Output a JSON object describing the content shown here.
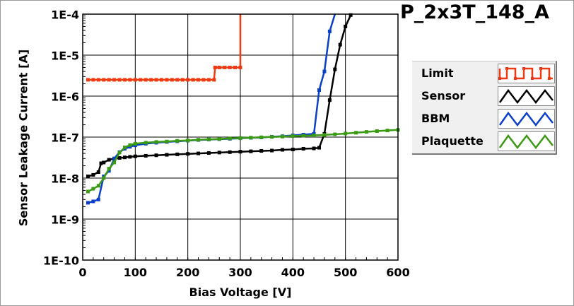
{
  "chart_data": {
    "type": "line",
    "title": "P_2x3T_148_A",
    "xlabel": "Bias Voltage [V]",
    "ylabel": "Sensor Leakage Current [A]",
    "xlim": [
      0,
      600
    ],
    "ylim": [
      1e-10,
      0.0001
    ],
    "yscale": "log",
    "x_ticks": [
      "0",
      "100",
      "200",
      "300",
      "400",
      "500",
      "600"
    ],
    "y_ticks": [
      "1E-10",
      "1E-9",
      "1E-8",
      "1E-7",
      "1E-6",
      "1E-5",
      "1E-4"
    ],
    "grid": true,
    "legend_position": "right",
    "series": [
      {
        "name": "Limit",
        "color": "#ee3a12",
        "points": [
          [
            10,
            2.5e-06
          ],
          [
            20,
            2.5e-06
          ],
          [
            30,
            2.5e-06
          ],
          [
            40,
            2.5e-06
          ],
          [
            50,
            2.5e-06
          ],
          [
            60,
            2.5e-06
          ],
          [
            70,
            2.5e-06
          ],
          [
            80,
            2.5e-06
          ],
          [
            90,
            2.5e-06
          ],
          [
            100,
            2.5e-06
          ],
          [
            110,
            2.5e-06
          ],
          [
            120,
            2.5e-06
          ],
          [
            130,
            2.5e-06
          ],
          [
            140,
            2.5e-06
          ],
          [
            150,
            2.5e-06
          ],
          [
            160,
            2.5e-06
          ],
          [
            170,
            2.5e-06
          ],
          [
            180,
            2.5e-06
          ],
          [
            190,
            2.5e-06
          ],
          [
            200,
            2.5e-06
          ],
          [
            210,
            2.5e-06
          ],
          [
            220,
            2.5e-06
          ],
          [
            230,
            2.5e-06
          ],
          [
            240,
            2.5e-06
          ],
          [
            250,
            2.5e-06
          ],
          [
            252,
            5e-06
          ],
          [
            260,
            5e-06
          ],
          [
            270,
            5e-06
          ],
          [
            280,
            5e-06
          ],
          [
            290,
            5e-06
          ],
          [
            300,
            5e-06
          ],
          [
            300,
            0.0001
          ]
        ]
      },
      {
        "name": "Sensor",
        "color": "#000000",
        "points": [
          [
            10,
            1.1e-08
          ],
          [
            20,
            1.2e-08
          ],
          [
            30,
            1.4e-08
          ],
          [
            35,
            2.3e-08
          ],
          [
            40,
            2.4e-08
          ],
          [
            50,
            2.8e-08
          ],
          [
            60,
            3e-08
          ],
          [
            70,
            3.1e-08
          ],
          [
            80,
            3.2e-08
          ],
          [
            90,
            3.3e-08
          ],
          [
            100,
            3.4e-08
          ],
          [
            120,
            3.5e-08
          ],
          [
            140,
            3.6e-08
          ],
          [
            160,
            3.7e-08
          ],
          [
            180,
            3.8e-08
          ],
          [
            200,
            3.9e-08
          ],
          [
            220,
            4e-08
          ],
          [
            240,
            4.1e-08
          ],
          [
            260,
            4.2e-08
          ],
          [
            280,
            4.3e-08
          ],
          [
            300,
            4.4e-08
          ],
          [
            320,
            4.5e-08
          ],
          [
            340,
            4.6e-08
          ],
          [
            360,
            4.7e-08
          ],
          [
            380,
            4.9e-08
          ],
          [
            400,
            5e-08
          ],
          [
            420,
            5.2e-08
          ],
          [
            440,
            5.3e-08
          ],
          [
            450,
            5.5e-08
          ],
          [
            460,
            1.2e-07
          ],
          [
            470,
            8e-07
          ],
          [
            480,
            4.5e-06
          ],
          [
            490,
            1.8e-05
          ],
          [
            500,
            5e-05
          ],
          [
            510,
            9.5e-05
          ]
        ]
      },
      {
        "name": "BBM",
        "color": "#0a3fc8",
        "points": [
          [
            10,
            2.5e-09
          ],
          [
            20,
            2.7e-09
          ],
          [
            30,
            3e-09
          ],
          [
            40,
            1.1e-08
          ],
          [
            50,
            1.5e-08
          ],
          [
            60,
            3e-08
          ],
          [
            70,
            4.3e-08
          ],
          [
            80,
            5.2e-08
          ],
          [
            90,
            5.8e-08
          ],
          [
            100,
            6.3e-08
          ],
          [
            120,
            6.9e-08
          ],
          [
            140,
            7.3e-08
          ],
          [
            160,
            7.6e-08
          ],
          [
            180,
            7.9e-08
          ],
          [
            200,
            8.2e-08
          ],
          [
            220,
            8.5e-08
          ],
          [
            240,
            8.7e-08
          ],
          [
            260,
            8.9e-08
          ],
          [
            280,
            9.1e-08
          ],
          [
            300,
            9.4e-08
          ],
          [
            320,
            9.6e-08
          ],
          [
            340,
            9.8e-08
          ],
          [
            360,
            1.02e-07
          ],
          [
            380,
            1.05e-07
          ],
          [
            400,
            1.1e-07
          ],
          [
            420,
            1.15e-07
          ],
          [
            440,
            1.2e-07
          ],
          [
            450,
            1.4e-06
          ],
          [
            460,
            4e-06
          ],
          [
            470,
            3.8e-05
          ],
          [
            480,
            0.0001
          ]
        ]
      },
      {
        "name": "Plaquette",
        "color": "#3a9a12",
        "points": [
          [
            10,
            4.7e-09
          ],
          [
            20,
            5.5e-09
          ],
          [
            30,
            6.5e-09
          ],
          [
            40,
            1e-08
          ],
          [
            50,
            1.7e-08
          ],
          [
            60,
            2.4e-08
          ],
          [
            70,
            4.2e-08
          ],
          [
            80,
            5.6e-08
          ],
          [
            90,
            6.4e-08
          ],
          [
            100,
            6.9e-08
          ],
          [
            120,
            7.3e-08
          ],
          [
            140,
            7.6e-08
          ],
          [
            160,
            7.8e-08
          ],
          [
            180,
            8.1e-08
          ],
          [
            200,
            8.3e-08
          ],
          [
            220,
            8.6e-08
          ],
          [
            240,
            8.8e-08
          ],
          [
            260,
            9e-08
          ],
          [
            280,
            9.3e-08
          ],
          [
            300,
            9.5e-08
          ],
          [
            320,
            9.7e-08
          ],
          [
            340,
            9.9e-08
          ],
          [
            360,
            1.01e-07
          ],
          [
            380,
            1.03e-07
          ],
          [
            400,
            1.06e-07
          ],
          [
            420,
            1.08e-07
          ],
          [
            440,
            1.1e-07
          ],
          [
            460,
            1.13e-07
          ],
          [
            480,
            1.17e-07
          ],
          [
            500,
            1.22e-07
          ],
          [
            520,
            1.28e-07
          ],
          [
            540,
            1.34e-07
          ],
          [
            560,
            1.4e-07
          ],
          [
            580,
            1.45e-07
          ],
          [
            600,
            1.5e-07
          ]
        ]
      }
    ]
  }
}
